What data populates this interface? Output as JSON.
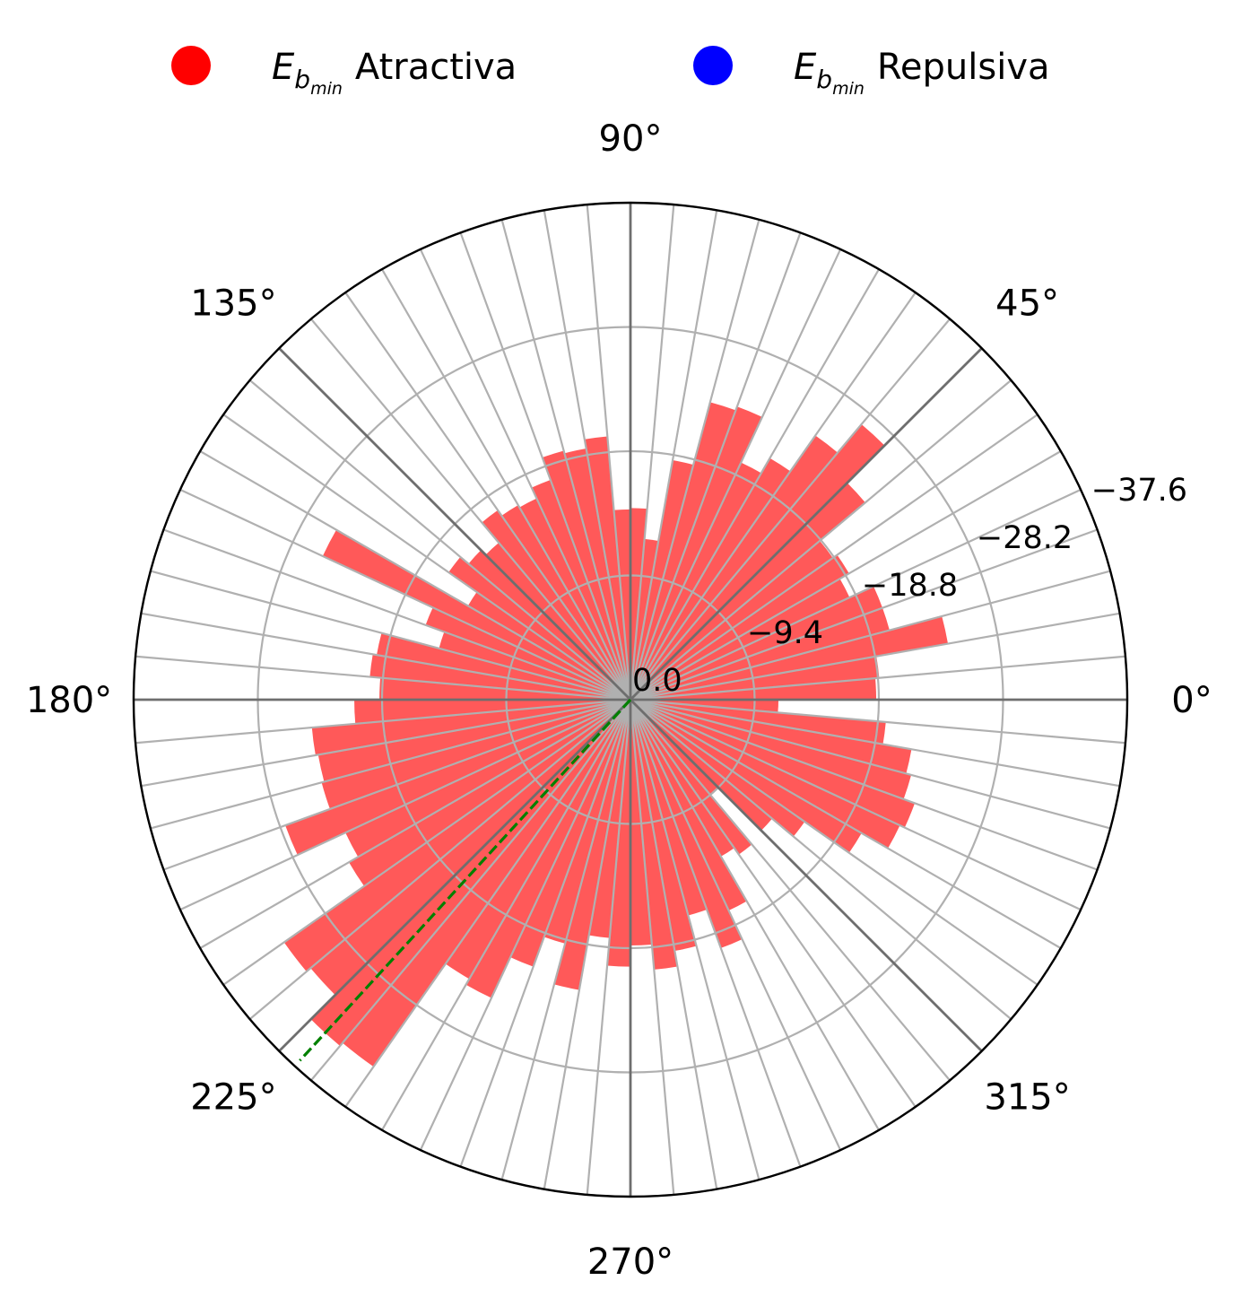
{
  "chart_data": {
    "type": "polar-bar",
    "legend": {
      "placement": "top",
      "entries": [
        {
          "symbol": "E",
          "sub": "b",
          "subsub": "min",
          "label": "Atractiva",
          "color": "#ff0000"
        },
        {
          "symbol": "E",
          "sub": "b",
          "subsub": "min",
          "label": "Repulsiva",
          "color": "#0000ff"
        }
      ]
    },
    "angle_ticks": [
      "0°",
      "45°",
      "90°",
      "135°",
      "180°",
      "225°",
      "270°",
      "315°"
    ],
    "radial_ticks": [
      "0.0",
      "−9.4",
      "−18.8",
      "−28.2",
      "−37.6"
    ],
    "r_range": [
      0,
      -37.6
    ],
    "bin_width_deg": 5,
    "bar_color": "#ff0000",
    "bar_alpha": 0.65,
    "highlight_line": {
      "angle_deg": 227.5,
      "color": "#008000",
      "style": "dashed"
    },
    "grid": true,
    "bins_start_deg": [
      0,
      5,
      10,
      15,
      20,
      25,
      30,
      35,
      40,
      45,
      50,
      55,
      60,
      65,
      70,
      75,
      80,
      85,
      90,
      95,
      100,
      105,
      110,
      115,
      120,
      125,
      130,
      135,
      140,
      145,
      150,
      155,
      160,
      165,
      170,
      175,
      180,
      185,
      190,
      195,
      200,
      205,
      210,
      215,
      220,
      225,
      230,
      235,
      240,
      245,
      250,
      255,
      260,
      265,
      270,
      275,
      280,
      285,
      290,
      295,
      300,
      305,
      310,
      315,
      320,
      325,
      330,
      335,
      340,
      345,
      350,
      355
    ],
    "values": [
      -18.6,
      -18.9,
      -24.4,
      -20.3,
      -20.3,
      -18.3,
      -19.1,
      -18.7,
      -23.2,
      -27.2,
      -24.4,
      -21.1,
      -19.8,
      -23.6,
      -23.3,
      -18.4,
      -12.2,
      -14.5,
      -14.4,
      -20.0,
      -19.3,
      -19.5,
      -17.7,
      -16.8,
      -17.0,
      -17.5,
      -15.5,
      -16.0,
      -16.8,
      -14.2,
      -25.7,
      -16.5,
      -15.0,
      -19.5,
      -19.8,
      -19.0,
      -20.9,
      -24.2,
      -24.0,
      -24.2,
      -27.8,
      -23.8,
      -24.6,
      -32.0,
      -31.6,
      -34.2,
      -33.9,
      -24.4,
      -24.9,
      -21.5,
      -19.1,
      -22.3,
      -18.1,
      -20.2,
      -18.6,
      -20.5,
      -19.3,
      -16.9,
      -20.0,
      -17.6,
      -13.7,
      -14.3,
      -9.4,
      -14.0,
      -16.1,
      -20.2,
      -22.5,
      -22.9,
      -22.0,
      -21.6,
      -19.4,
      -11.2
    ]
  }
}
